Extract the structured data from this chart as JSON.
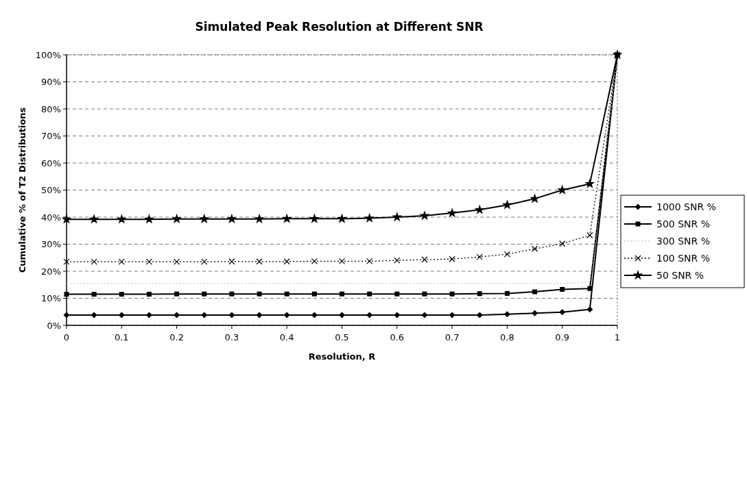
{
  "chart_data": {
    "type": "line",
    "title": "Simulated Peak Resolution at Different SNR",
    "xlabel": "Resolution, R",
    "ylabel": "Cumulative % of T2 Distributions",
    "x": [
      0,
      0.05,
      0.1,
      0.15,
      0.2,
      0.25,
      0.3,
      0.35,
      0.4,
      0.45,
      0.5,
      0.55,
      0.6,
      0.65,
      0.7,
      0.75,
      0.8,
      0.85,
      0.9,
      0.95,
      1
    ],
    "xlim": [
      0,
      1
    ],
    "xticks": [
      0,
      0.1,
      0.2,
      0.3,
      0.4,
      0.5,
      0.6,
      0.7,
      0.8,
      0.9,
      1
    ],
    "ylim": [
      0,
      100
    ],
    "yticks": [
      {
        "value": 0,
        "label": "0%"
      },
      {
        "value": 10,
        "label": "10%"
      },
      {
        "value": 20,
        "label": "20%"
      },
      {
        "value": 30,
        "label": "30%"
      },
      {
        "value": 40,
        "label": "40%"
      },
      {
        "value": 50,
        "label": "50%"
      },
      {
        "value": 60,
        "label": "60%"
      },
      {
        "value": 70,
        "label": "70%"
      },
      {
        "value": 80,
        "label": "80%"
      },
      {
        "value": 90,
        "label": "90%"
      },
      {
        "value": 100,
        "label": "100%"
      }
    ],
    "grid": "y",
    "legend": "right",
    "series": [
      {
        "name": "1000 SNR %",
        "color": "#000000",
        "marker": "diamond",
        "line_style": "solid",
        "values": [
          3.8,
          3.8,
          3.8,
          3.8,
          3.8,
          3.8,
          3.8,
          3.8,
          3.8,
          3.8,
          3.8,
          3.8,
          3.8,
          3.8,
          3.8,
          3.8,
          4.1,
          4.5,
          4.9,
          5.9,
          100
        ]
      },
      {
        "name": "500 SNR %",
        "color": "#000000",
        "marker": "square",
        "line_style": "solid",
        "values": [
          11.5,
          11.5,
          11.5,
          11.5,
          11.6,
          11.6,
          11.6,
          11.6,
          11.6,
          11.6,
          11.6,
          11.6,
          11.6,
          11.6,
          11.6,
          11.7,
          11.8,
          12.4,
          13.3,
          13.6,
          100
        ]
      },
      {
        "name": "300 SNR %",
        "color": "#c8c8c8",
        "marker": "none",
        "line_style": "dotted",
        "values": [
          15.5,
          15.5,
          15.5,
          15.5,
          15.5,
          15.5,
          15.5,
          15.5,
          15.5,
          15.5,
          15.5,
          15.5,
          15.5,
          15.5,
          15.5,
          15.5,
          15.5,
          15.5,
          15.5,
          16,
          100
        ]
      },
      {
        "name": "100 SNR %",
        "color": "#000000",
        "marker": "cross",
        "line_style": "dotted",
        "values": [
          23.5,
          23.5,
          23.5,
          23.5,
          23.5,
          23.5,
          23.6,
          23.6,
          23.6,
          23.7,
          23.7,
          23.7,
          24,
          24.3,
          24.5,
          25.3,
          26.3,
          28.3,
          30.2,
          33.3,
          100
        ]
      },
      {
        "name": "50 SNR %",
        "color": "#000000",
        "marker": "star",
        "line_style": "solid",
        "values": [
          39.2,
          39.2,
          39.2,
          39.2,
          39.3,
          39.3,
          39.3,
          39.3,
          39.4,
          39.4,
          39.4,
          39.6,
          40,
          40.5,
          41.5,
          42.7,
          44.5,
          46.8,
          50,
          52.3,
          100
        ]
      }
    ]
  }
}
